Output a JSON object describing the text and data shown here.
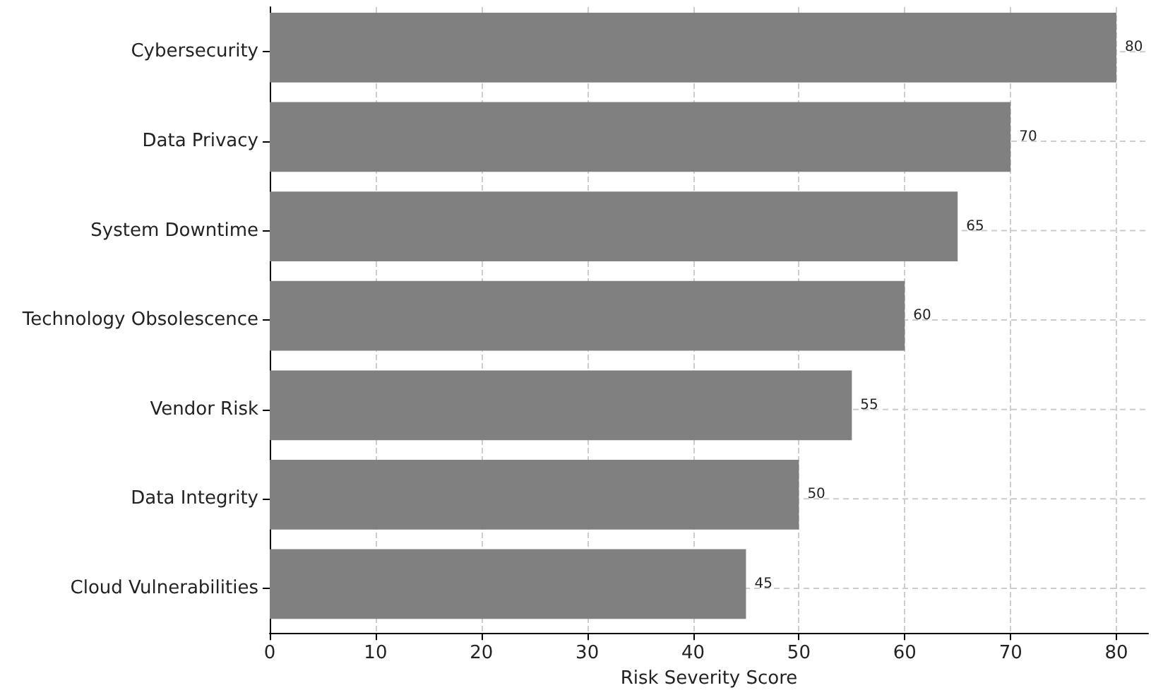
{
  "chart_data": {
    "type": "bar",
    "orientation": "horizontal",
    "xlabel": "Risk Severity Score",
    "categories": [
      "Cybersecurity",
      "Data Privacy",
      "System Downtime",
      "Technology Obsolescence",
      "Vendor Risk",
      "Data Integrity",
      "Cloud Vulnerabilities"
    ],
    "values": [
      80,
      70,
      65,
      60,
      55,
      50,
      45
    ],
    "color": "#808080",
    "xlim": [
      0,
      83
    ],
    "xticks": [
      0,
      10,
      20,
      30,
      40,
      50,
      60,
      70,
      80
    ],
    "grid": true,
    "data_labels": true
  }
}
